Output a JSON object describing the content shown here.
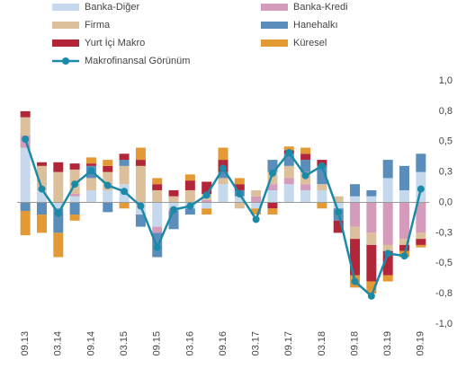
{
  "chart_data": {
    "type": "stacked-bar",
    "categories": [
      "09.13",
      null,
      "03.14",
      null,
      "09.14",
      null,
      "03.15",
      null,
      "09.15",
      null,
      "03.16",
      null,
      "09.16",
      null,
      "03.17",
      null,
      "09.17",
      null,
      "03.18",
      null,
      "09.18",
      null,
      "03.19",
      null,
      "09.19"
    ],
    "series": [
      {
        "name": "Banka-Diğer",
        "color": "#c6d9ec",
        "values": [
          0.45,
          0.1,
          -0.05,
          0.05,
          0.1,
          0.1,
          0.15,
          -0.1,
          -0.2,
          -0.05,
          -0.05,
          -0.05,
          0.15,
          0.05,
          -0.05,
          0.1,
          0.15,
          0.1,
          0.1,
          -0.05,
          0.05,
          0.05,
          0.2,
          0.1,
          0.25
        ]
      },
      {
        "name": "Banka-Kredi",
        "color": "#d49bbb",
        "values": [
          0.1,
          0,
          0,
          0.02,
          0,
          0,
          0,
          0,
          -0.05,
          -0.02,
          0,
          0.02,
          0,
          0,
          0.05,
          0.05,
          0.05,
          0.05,
          0,
          0,
          -0.2,
          -0.25,
          -0.35,
          -0.3,
          -0.25
        ]
      },
      {
        "name": "Firma",
        "color": "#dcc09c",
        "values": [
          0.15,
          0.2,
          0.25,
          0.2,
          0.1,
          0.15,
          0.15,
          0.3,
          0.1,
          0.05,
          0.1,
          0.05,
          0.05,
          -0.05,
          0.05,
          0.1,
          0.1,
          0.1,
          0.05,
          0.05,
          -0.1,
          -0.1,
          -0.05,
          -0.05,
          -0.05
        ]
      },
      {
        "name": "Hanehalkı",
        "color": "#5b8dba",
        "values": [
          -0.07,
          -0.1,
          -0.2,
          -0.1,
          0.1,
          -0.08,
          0.05,
          -0.1,
          -0.2,
          -0.15,
          -0.05,
          0,
          0.05,
          0.05,
          0,
          0.1,
          0.1,
          0.1,
          0.15,
          -0.1,
          0.1,
          0.05,
          0.15,
          0.2,
          0.15
        ]
      },
      {
        "name": "Yurt İçi Makro",
        "color": "#b3263a",
        "values": [
          0.05,
          0.03,
          0.08,
          0.05,
          0.02,
          0.05,
          0.05,
          0.05,
          0.05,
          0.05,
          0.08,
          0.1,
          0.1,
          0.05,
          0,
          -0.05,
          0.03,
          0.05,
          0.05,
          -0.1,
          -0.3,
          -0.3,
          -0.2,
          -0.05,
          -0.05
        ]
      },
      {
        "name": "Küresel",
        "color": "#e39a34",
        "values": [
          -0.2,
          -0.15,
          -0.2,
          -0.05,
          0.05,
          0.05,
          -0.05,
          0.1,
          0.05,
          0,
          0.05,
          -0.05,
          0.1,
          0.05,
          -0.05,
          -0.05,
          0.03,
          0.05,
          -0.05,
          0,
          -0.1,
          -0.1,
          -0.05,
          -0.05,
          -0.02
        ]
      }
    ],
    "line": {
      "name": "Makrofinansal Görünüm",
      "color": "#1b8aa8",
      "values": [
        0.52,
        0.11,
        -0.09,
        0.15,
        0.26,
        0.14,
        0.09,
        -0.03,
        -0.37,
        -0.06,
        -0.03,
        0.06,
        0.28,
        0.07,
        -0.14,
        0.24,
        0.41,
        0.22,
        0.3,
        -0.08,
        -0.65,
        -0.77,
        -0.42,
        -0.44,
        0.11
      ]
    },
    "ylim": [
      -1.0,
      1.0
    ],
    "yticks": [
      {
        "value": 1.0,
        "label": "1,0"
      },
      {
        "value": 0.75,
        "label": "0,8"
      },
      {
        "value": 0.5,
        "label": "0,5"
      },
      {
        "value": 0.25,
        "label": "0,3"
      },
      {
        "value": 0,
        "label": "0,0"
      },
      {
        "value": -0.25,
        "label": "-0,3"
      },
      {
        "value": -0.5,
        "label": "-0,5"
      },
      {
        "value": -0.75,
        "label": "-0,8"
      },
      {
        "value": -1.0,
        "label": "-1,0"
      }
    ],
    "grid": false
  }
}
